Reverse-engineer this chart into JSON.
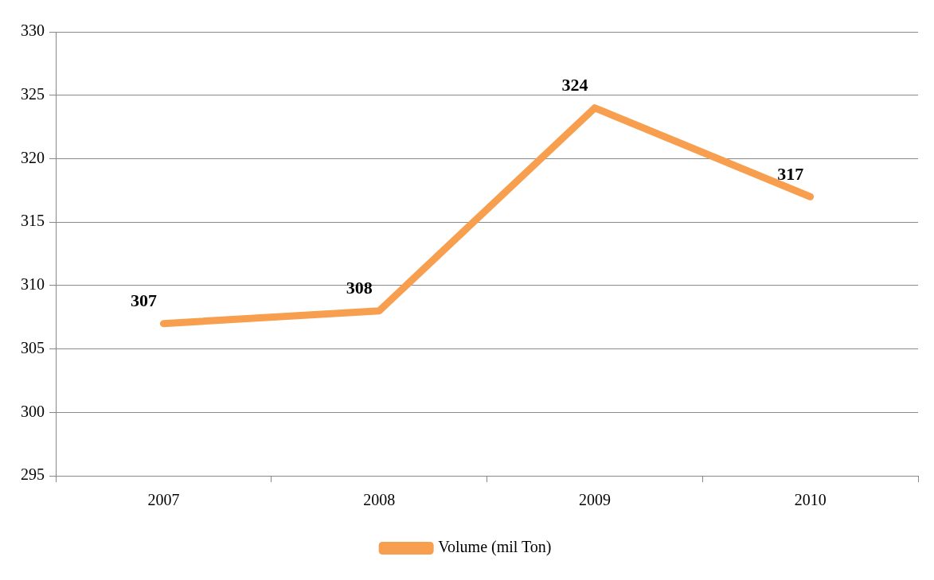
{
  "chart_data": {
    "type": "line",
    "categories": [
      "2007",
      "2008",
      "2009",
      "2010"
    ],
    "series": [
      {
        "name": "Volume (mil Ton)",
        "color": "#f79f4f",
        "values": [
          307,
          308,
          324,
          317
        ]
      }
    ],
    "ylim": [
      295,
      330
    ],
    "yticks": [
      295,
      300,
      305,
      310,
      315,
      320,
      325,
      330
    ],
    "grid": "y",
    "legend": "bottom",
    "data_labels": true,
    "marker": "none"
  }
}
